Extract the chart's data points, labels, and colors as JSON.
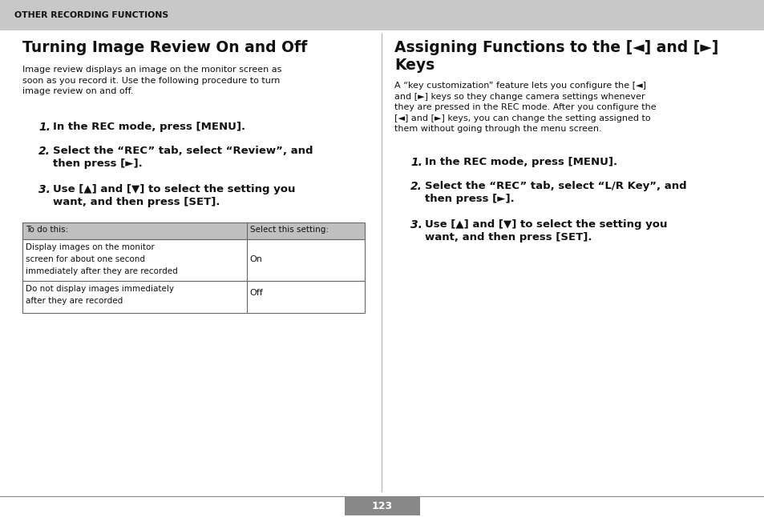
{
  "bg_color": "#ffffff",
  "header_bg": "#c8c8c8",
  "header_text": "OTHER RECORDING FUNCTIONS",
  "page_number": "123",
  "left_col": {
    "title": "Turning Image Review On and Off",
    "body_text": "Image review displays an image on the monitor screen as\nsoon as you record it. Use the following procedure to turn\nimage review on and off.",
    "steps": [
      {
        "num": "1.",
        "text": "In the REC mode, press [MENU]."
      },
      {
        "num": "2.",
        "text": "Select the “REC” tab, select “Review”, and\nthen press [►]."
      },
      {
        "num": "3.",
        "text": "Use [▲] and [▼] to select the setting you\nwant, and then press [SET]."
      }
    ],
    "table_header": [
      "To do this:",
      "Select this setting:"
    ],
    "table_rows": [
      [
        "Display images on the monitor\nscreen for about one second\nimmediately after they are recorded",
        "On"
      ],
      [
        "Do not display images immediately\nafter they are recorded",
        "Off"
      ]
    ]
  },
  "right_col": {
    "title_line1": "Assigning Functions to the [◄] and [►]",
    "title_line2": "Keys",
    "body_text": "A “key customization” feature lets you configure the [◄]\nand [►] keys so they change camera settings whenever\nthey are pressed in the REC mode. After you configure the\n[◄] and [►] keys, you can change the setting assigned to\nthem without going through the menu screen.",
    "steps": [
      {
        "num": "1.",
        "text": "In the REC mode, press [MENU]."
      },
      {
        "num": "2.",
        "text": "Select the “REC” tab, select “L/R Key”, and\nthen press [►]."
      },
      {
        "num": "3.",
        "text": "Use [▲] and [▼] to select the setting you\nwant, and then press [SET]."
      }
    ]
  }
}
